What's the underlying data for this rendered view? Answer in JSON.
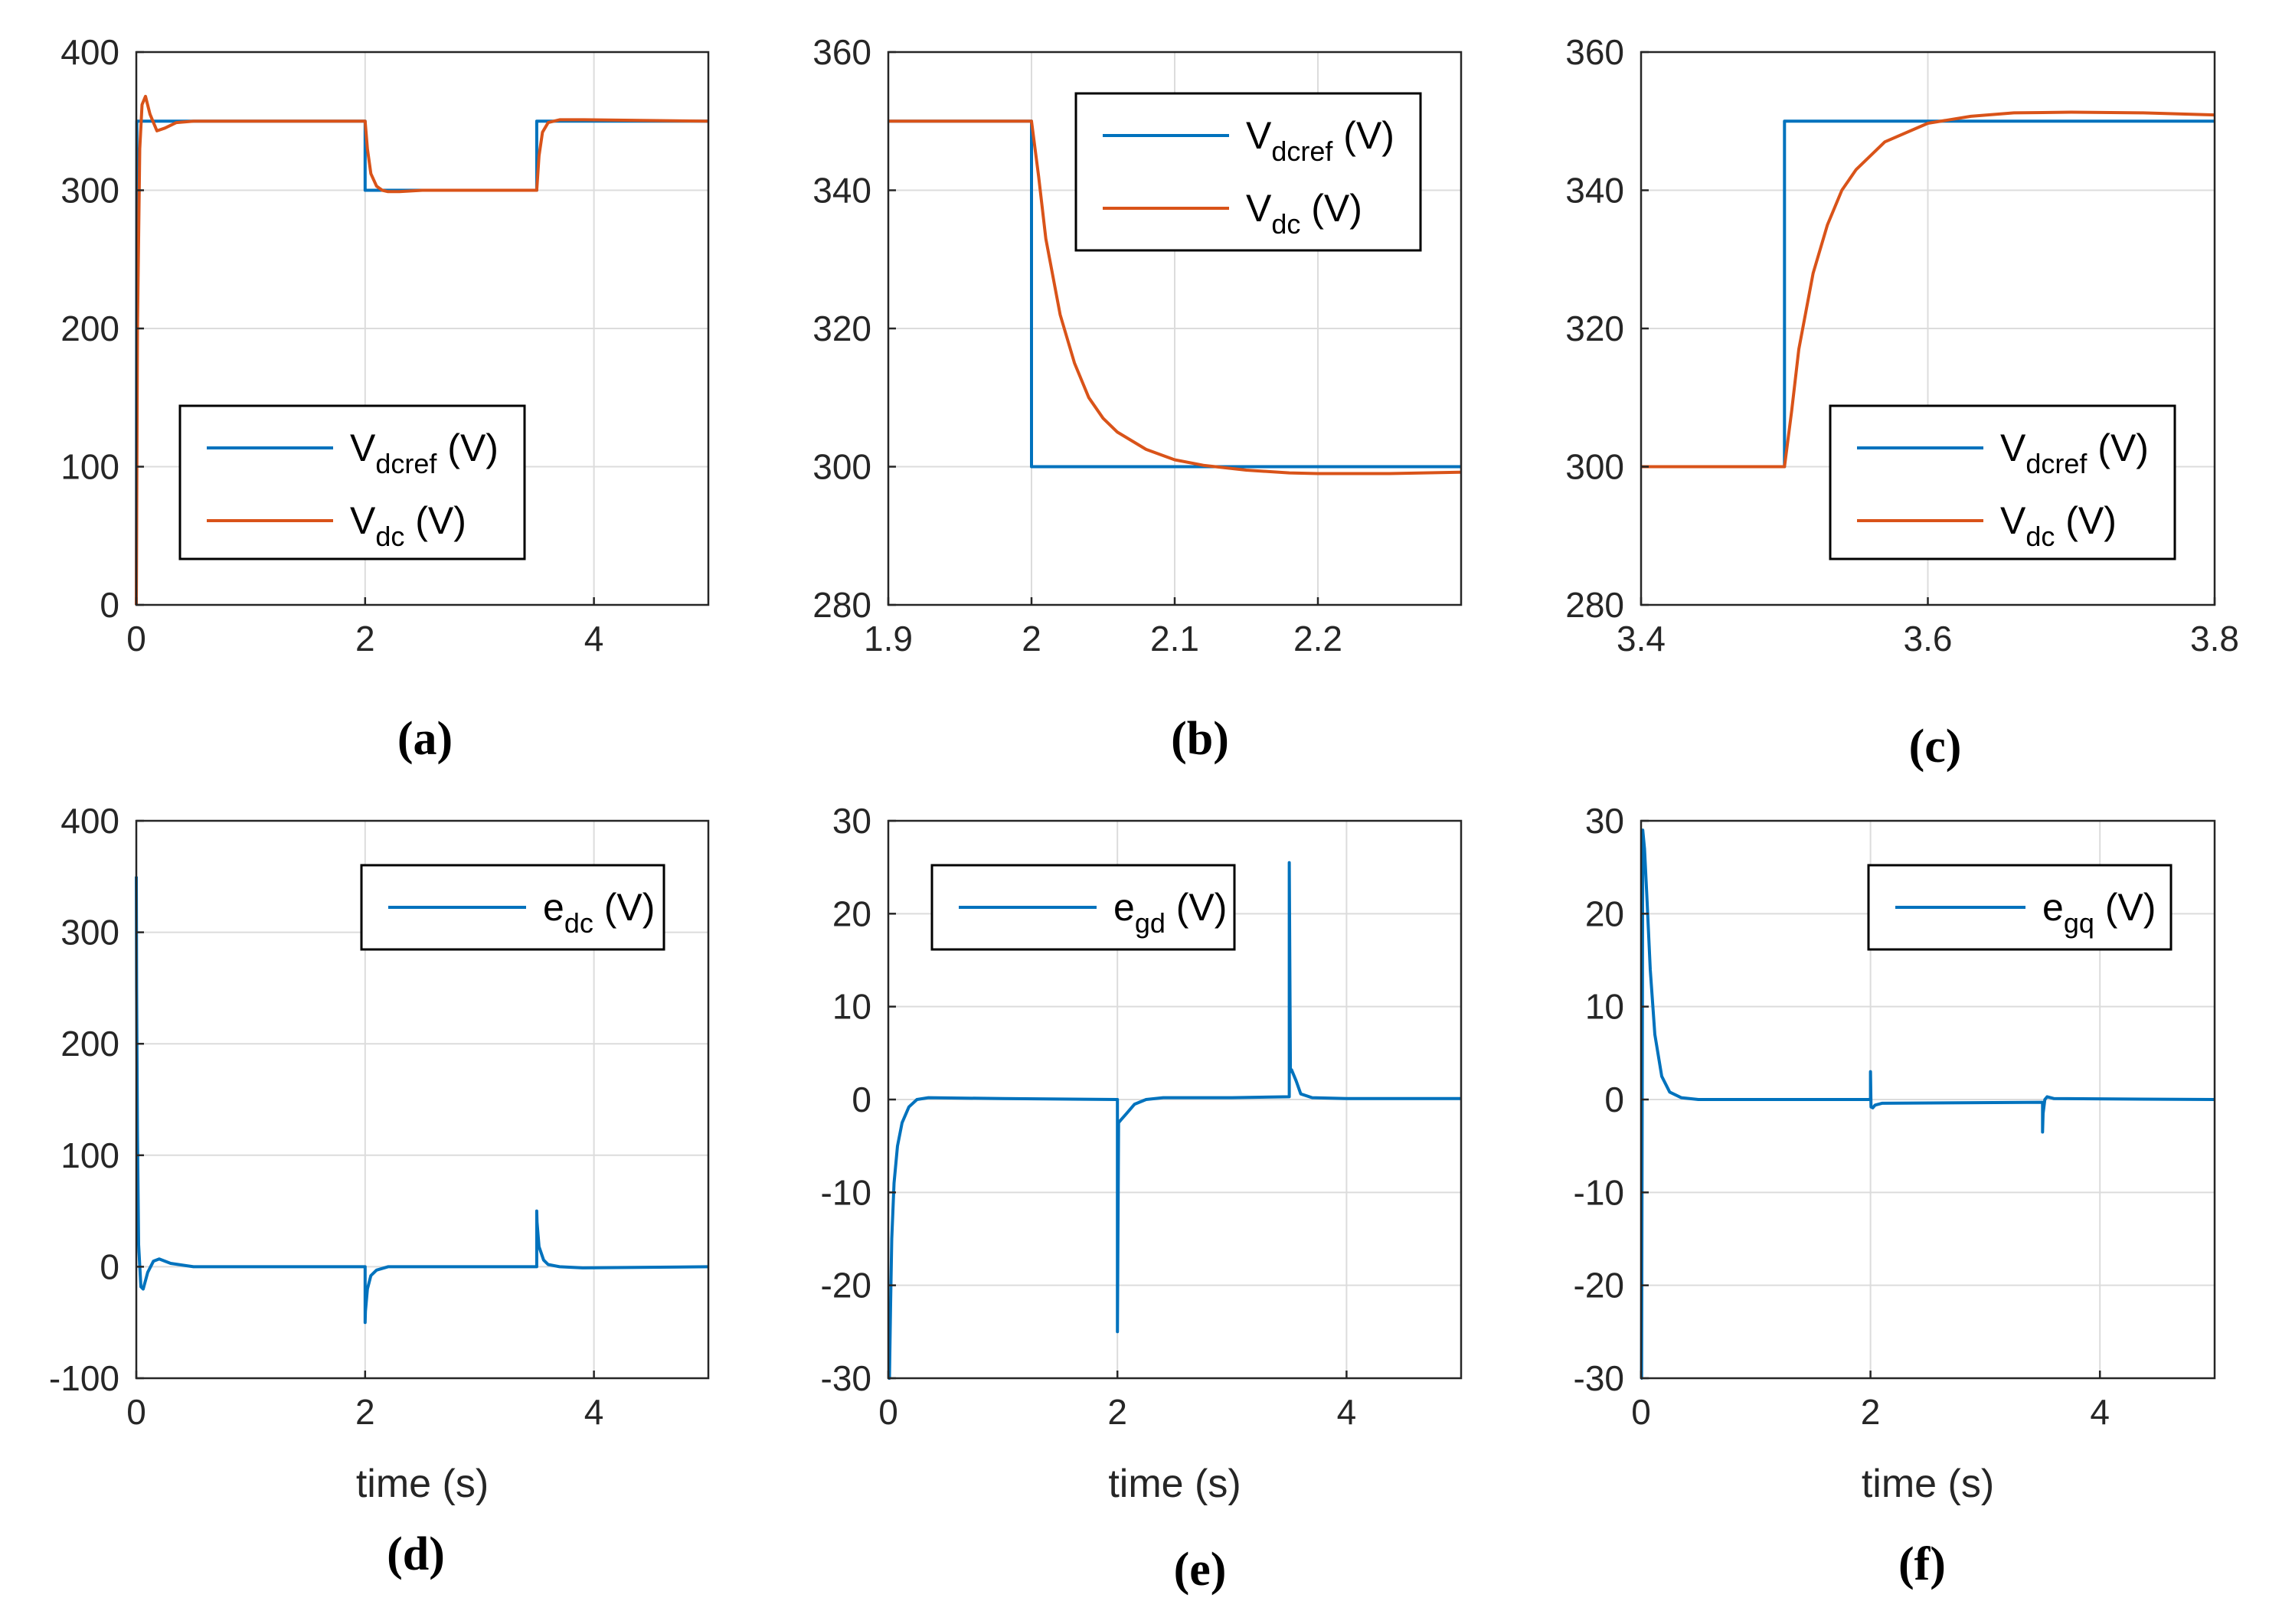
{
  "colors": {
    "blue": "#0072BD",
    "orange": "#D95319"
  },
  "chart_data": [
    {
      "id": "a",
      "type": "line",
      "caption": "(a)",
      "xlabel": "",
      "xlim": [
        0,
        5
      ],
      "ylim": [
        0,
        400
      ],
      "xticks": [
        0,
        2,
        4
      ],
      "xtick_labels": [
        "0",
        "2",
        "4"
      ],
      "yticks": [
        0,
        100,
        200,
        300,
        400
      ],
      "ytick_labels": [
        "0",
        "100",
        "200",
        "300",
        "400"
      ],
      "legend": {
        "position": "lower-middle",
        "entries": [
          {
            "series": 0,
            "main": "V",
            "sub": "dcref",
            "unit": " (V)"
          },
          {
            "series": 1,
            "main": "V",
            "sub": "dc",
            "unit": " (V)"
          }
        ]
      },
      "series": [
        {
          "name": "Vdcref (V)",
          "color": "#0072BD",
          "x": [
            0,
            0.005,
            0.01,
            2.0,
            2.0,
            3.5,
            3.5,
            5
          ],
          "y": [
            0,
            350,
            350,
            350,
            300,
            300,
            350,
            350
          ]
        },
        {
          "name": "Vdc (V)",
          "color": "#D95319",
          "x": [
            0,
            0.01,
            0.03,
            0.05,
            0.08,
            0.12,
            0.18,
            0.25,
            0.35,
            0.5,
            2.0,
            2.02,
            2.05,
            2.1,
            2.15,
            2.2,
            2.3,
            2.5,
            3.5,
            3.52,
            3.55,
            3.6,
            3.7,
            3.9,
            5
          ],
          "y": [
            0,
            200,
            330,
            362,
            368,
            355,
            343,
            345,
            349,
            350,
            350,
            330,
            312,
            303,
            300,
            299,
            299,
            300,
            300,
            325,
            342,
            349,
            351,
            351,
            350
          ]
        }
      ]
    },
    {
      "id": "b",
      "type": "line",
      "caption": "(b)",
      "xlabel": "",
      "xlim": [
        1.9,
        2.3
      ],
      "ylim": [
        280,
        360
      ],
      "xticks": [
        1.9,
        2.0,
        2.1,
        2.2
      ],
      "xtick_labels": [
        "1.9",
        "2",
        "2.1",
        "2.2"
      ],
      "yticks": [
        280,
        300,
        320,
        340,
        360
      ],
      "ytick_labels": [
        "280",
        "300",
        "320",
        "340",
        "360"
      ],
      "legend": {
        "position": "top-right",
        "entries": [
          {
            "series": 0,
            "main": "V",
            "sub": "dcref",
            "unit": " (V)"
          },
          {
            "series": 1,
            "main": "V",
            "sub": "dc",
            "unit": " (V)"
          }
        ]
      },
      "series": [
        {
          "name": "Vdcref (V)",
          "color": "#0072BD",
          "x": [
            1.9,
            2.0,
            2.0,
            2.3
          ],
          "y": [
            350,
            350,
            300,
            300
          ]
        },
        {
          "name": "Vdc (V)",
          "color": "#D95319",
          "x": [
            1.9,
            2.0,
            2.005,
            2.01,
            2.02,
            2.03,
            2.04,
            2.05,
            2.06,
            2.08,
            2.1,
            2.12,
            2.15,
            2.18,
            2.2,
            2.25,
            2.3
          ],
          "y": [
            350,
            350,
            342,
            333,
            322,
            315,
            310,
            307,
            305,
            302.5,
            301,
            300.2,
            299.5,
            299.1,
            299,
            299,
            299.2
          ]
        }
      ]
    },
    {
      "id": "c",
      "type": "line",
      "caption": "(c)",
      "xlabel": "",
      "xlim": [
        3.4,
        3.8
      ],
      "ylim": [
        280,
        360
      ],
      "xticks": [
        3.4,
        3.6,
        3.8
      ],
      "xtick_labels": [
        "3.4",
        "3.6",
        "3.8"
      ],
      "yticks": [
        280,
        300,
        320,
        340,
        360
      ],
      "ytick_labels": [
        "280",
        "300",
        "320",
        "340",
        "360"
      ],
      "legend": {
        "position": "lower-right",
        "entries": [
          {
            "series": 0,
            "main": "V",
            "sub": "dcref",
            "unit": " (V)"
          },
          {
            "series": 1,
            "main": "V",
            "sub": "dc",
            "unit": " (V)"
          }
        ]
      },
      "series": [
        {
          "name": "Vdcref (V)",
          "color": "#0072BD",
          "x": [
            3.4,
            3.5,
            3.5,
            3.8
          ],
          "y": [
            300,
            300,
            350,
            350
          ]
        },
        {
          "name": "Vdc (V)",
          "color": "#D95319",
          "x": [
            3.4,
            3.5,
            3.505,
            3.51,
            3.52,
            3.53,
            3.54,
            3.55,
            3.57,
            3.6,
            3.63,
            3.66,
            3.7,
            3.75,
            3.8
          ],
          "y": [
            300,
            300,
            308,
            317,
            328,
            335,
            340,
            343,
            347,
            349.7,
            350.7,
            351.2,
            351.3,
            351.2,
            350.9
          ]
        }
      ]
    },
    {
      "id": "d",
      "type": "line",
      "caption": "(d)",
      "xlabel": "time (s)",
      "xlim": [
        0,
        5
      ],
      "ylim": [
        -100,
        400
      ],
      "xticks": [
        0,
        2,
        4
      ],
      "xtick_labels": [
        "0",
        "2",
        "4"
      ],
      "yticks": [
        -100,
        0,
        100,
        200,
        300,
        400
      ],
      "ytick_labels": [
        "-100",
        "0",
        "100",
        "200",
        "300",
        "400"
      ],
      "legend": {
        "position": "top-right",
        "entries": [
          {
            "series": 0,
            "main": "e",
            "sub": "dc",
            "unit": " (V)"
          }
        ]
      },
      "series": [
        {
          "name": "edc (V)",
          "color": "#0072BD",
          "x": [
            0,
            0.003,
            0.01,
            0.02,
            0.04,
            0.06,
            0.1,
            0.15,
            0.2,
            0.3,
            0.5,
            1.0,
            2.0,
            2.0,
            2.003,
            2.02,
            2.05,
            2.1,
            2.2,
            2.4,
            3.5,
            3.5,
            3.503,
            3.52,
            3.56,
            3.6,
            3.7,
            3.9,
            5
          ],
          "y": [
            350,
            250,
            120,
            20,
            -18,
            -20,
            -5,
            5,
            7,
            3,
            0,
            0,
            0,
            -50,
            -40,
            -20,
            -8,
            -3,
            0,
            0,
            0,
            50,
            40,
            18,
            6,
            2,
            0,
            -1,
            0
          ]
        }
      ]
    },
    {
      "id": "e",
      "type": "line",
      "caption": "(e)",
      "xlabel": "time (s)",
      "xlim": [
        0,
        5
      ],
      "ylim": [
        -30,
        30
      ],
      "xticks": [
        0,
        2,
        4
      ],
      "xtick_labels": [
        "0",
        "2",
        "4"
      ],
      "yticks": [
        -30,
        -20,
        -10,
        0,
        10,
        20,
        30
      ],
      "ytick_labels": [
        "-30",
        "-20",
        "-10",
        "0",
        "10",
        "20",
        "30"
      ],
      "legend": {
        "position": "top-right",
        "entries": [
          {
            "series": 0,
            "main": "e",
            "sub": "gd",
            "unit": " (V)"
          }
        ]
      },
      "series": [
        {
          "name": "egd (V)",
          "color": "#0072BD",
          "x": [
            0,
            0.01,
            0.02,
            0.03,
            0.05,
            0.08,
            0.12,
            0.18,
            0.25,
            0.35,
            1.0,
            2.0,
            2.0,
            2.01,
            2.03,
            2.08,
            2.15,
            2.25,
            2.4,
            2.6,
            3.0,
            3.5,
            3.5,
            3.51,
            3.52,
            3.56,
            3.6,
            3.7,
            4.0,
            5
          ],
          "y": [
            -30,
            -30,
            -22,
            -15,
            -9,
            -5,
            -2.5,
            -0.8,
            0,
            0.2,
            0.1,
            0,
            -25,
            -2.5,
            -2.2,
            -1.5,
            -0.5,
            0,
            0.2,
            0.2,
            0.2,
            0.3,
            25.5,
            3,
            3.2,
            2.0,
            0.6,
            0.2,
            0.1,
            0.1
          ]
        }
      ]
    },
    {
      "id": "f",
      "type": "line",
      "caption": "(f)",
      "xlabel": "time (s)",
      "xlim": [
        0,
        5
      ],
      "ylim": [
        -30,
        30
      ],
      "xticks": [
        0,
        2,
        4
      ],
      "xtick_labels": [
        "0",
        "2",
        "4"
      ],
      "yticks": [
        -30,
        -20,
        -10,
        0,
        10,
        20,
        30
      ],
      "ytick_labels": [
        "-30",
        "-20",
        "-10",
        "0",
        "10",
        "20",
        "30"
      ],
      "legend": {
        "position": "top-right",
        "entries": [
          {
            "series": 0,
            "main": "e",
            "sub": "gq",
            "unit": " (V)"
          }
        ]
      },
      "series": [
        {
          "name": "egq (V)",
          "color": "#0072BD",
          "x": [
            0,
            0.005,
            0.01,
            0.015,
            0.03,
            0.05,
            0.08,
            0.12,
            0.18,
            0.25,
            0.35,
            0.5,
            2.0,
            2.0,
            2.005,
            2.02,
            2.04,
            2.1,
            3.5,
            3.5,
            3.505,
            3.52,
            3.54,
            3.6,
            5
          ],
          "y": [
            -30,
            -30,
            0,
            29,
            27,
            22,
            14,
            7,
            2.5,
            0.8,
            0.2,
            0,
            0,
            3,
            -0.8,
            -0.9,
            -0.6,
            -0.4,
            -0.3,
            -3.5,
            -1.5,
            0,
            0.3,
            0.1,
            0
          ]
        }
      ]
    }
  ]
}
